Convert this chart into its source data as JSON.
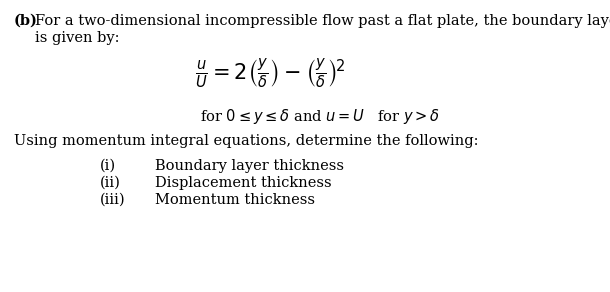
{
  "background_color": "#ffffff",
  "bold_prefix": "(b)",
  "intro_line1": " For a two-dimensional incompressible flow past a flat plate, the boundary layer velocity profile",
  "intro_line2": "      is given by:",
  "condition_text": "for $0 \\leq y \\leq \\delta$ and $u = U$   for $y > \\delta$",
  "using_text": "Using momentum integral equations, determine the following:",
  "items": [
    [
      "(i)",
      "Boundary layer thickness"
    ],
    [
      "(ii)",
      "Displacement thickness"
    ],
    [
      "(iii)",
      "Momentum thickness"
    ]
  ],
  "formula": "$\\frac{u}{U} = 2\\left(\\frac{y}{\\delta}\\right) - \\left(\\frac{y}{\\delta}\\right)^{\\!2}$",
  "text_color": "#000000",
  "figsize": [
    6.1,
    2.92
  ],
  "dpi": 100
}
